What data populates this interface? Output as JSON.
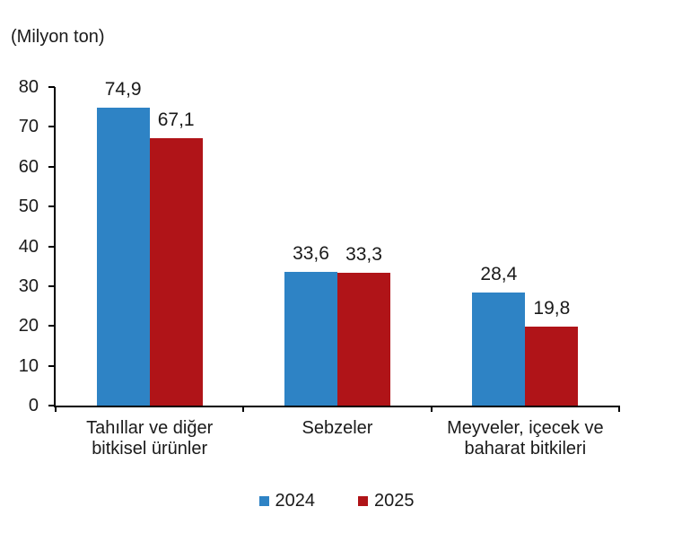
{
  "chart_data": {
    "type": "bar",
    "unit_label": "(Milyon ton)",
    "categories": [
      {
        "lines": [
          "Tahıllar ve diğer",
          "bitkisel ürünler"
        ]
      },
      {
        "lines": [
          "Sebzeler"
        ]
      },
      {
        "lines": [
          "Meyveler, içecek ve",
          "baharat  bitkileri"
        ]
      }
    ],
    "series": [
      {
        "name": "2024",
        "color": "#2E83C5",
        "values": [
          74.9,
          33.6,
          28.4
        ],
        "labels": [
          "74,9",
          "33,6",
          "28,4"
        ]
      },
      {
        "name": "2025",
        "color": "#B01418",
        "values": [
          67.1,
          33.3,
          19.8
        ],
        "labels": [
          "67,1",
          "33,3",
          "19,8"
        ]
      }
    ],
    "ylim": [
      0,
      80
    ],
    "yticks": [
      0,
      10,
      20,
      30,
      40,
      50,
      60,
      70,
      80
    ],
    "grid": false,
    "legend_position": "bottom",
    "text_color": "#1a1a1a",
    "axis_color": "#000000"
  }
}
